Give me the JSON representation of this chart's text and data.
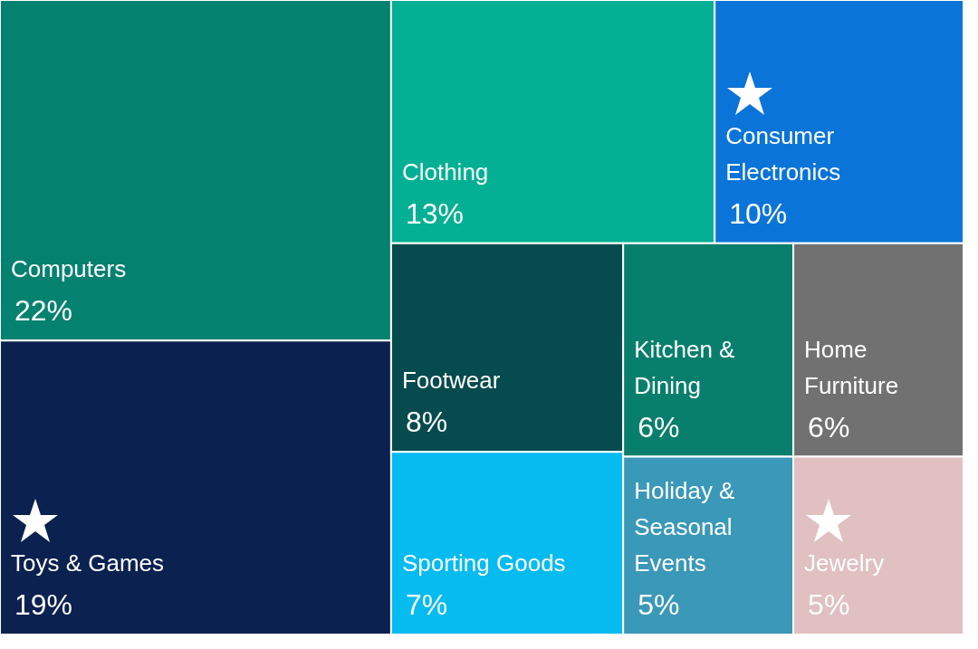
{
  "chart_data": {
    "type": "other",
    "categories": [
      "Computers",
      "Toys & Games",
      "Clothing",
      "Consumer Electronics",
      "Footwear",
      "Sporting Goods",
      "Kitchen & Dining",
      "Home Furniture",
      "Holiday & Seasonal Events",
      "Jewelry"
    ],
    "values": [
      22,
      19,
      13,
      10,
      8,
      7,
      6,
      6,
      5,
      5
    ],
    "value_labels": [
      "22%",
      "19%",
      "13%",
      "10%",
      "8%",
      "7%",
      "6%",
      "6%",
      "5%",
      "5%"
    ],
    "colors": [
      "#058170",
      "#0b2150",
      "#03b093",
      "#0a74d8",
      "#064b4d",
      "#05bbf0",
      "#087f6c",
      "#717171",
      "#3a98b8",
      "#e0c0c0"
    ]
  }
}
